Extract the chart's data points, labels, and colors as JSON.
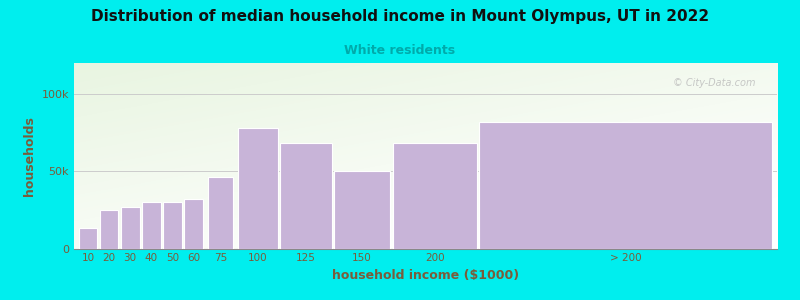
{
  "title": "Distribution of median household income in Mount Olympus, UT in 2022",
  "subtitle": "White residents",
  "xlabel": "household income ($1000)",
  "ylabel": "households",
  "background_color": "#00EEEE",
  "bar_color": "#c8b4d8",
  "bar_edge_color": "#ffffff",
  "title_color": "#111111",
  "subtitle_color": "#00AAAA",
  "ylabel_color": "#7a5c3a",
  "xlabel_color": "#7a5c3a",
  "tick_color": "#7a5c3a",
  "grid_color": "#cccccc",
  "categories": [
    "10",
    "20",
    "30",
    "40",
    "50",
    "60",
    "75",
    "100",
    "125",
    "150",
    "200",
    "> 200"
  ],
  "values": [
    13000,
    25000,
    27000,
    30000,
    30000,
    32000,
    46000,
    78000,
    68000,
    50000,
    68000,
    82000
  ],
  "yticks": [
    0,
    50000,
    100000
  ],
  "ytick_labels": [
    "0",
    "50k",
    "100k"
  ],
  "ylim": [
    0,
    120000
  ],
  "watermark": "© City-Data.com",
  "plot_bg_colors": [
    "#e8f5e0",
    "#f5faf0",
    "#ffffff",
    "#f0f8ff"
  ],
  "title_fontsize": 11,
  "subtitle_fontsize": 9,
  "label_fontsize": 9
}
